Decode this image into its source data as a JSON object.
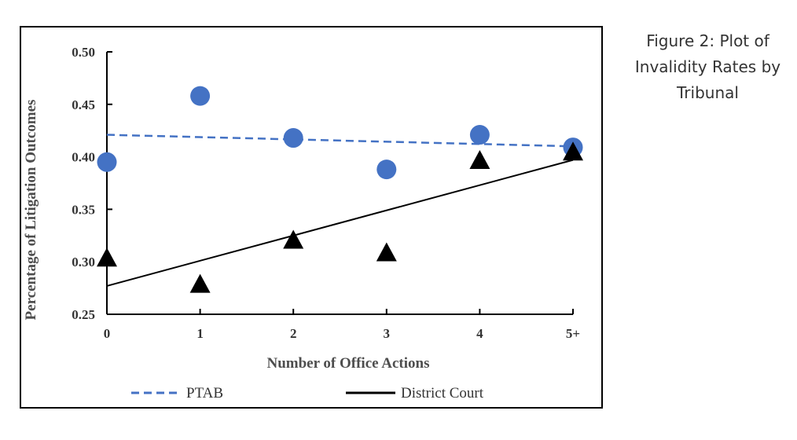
{
  "caption": "Figure 2: Plot of Invalidity Rates by Tribunal",
  "chart_data": {
    "type": "scatter",
    "title": "",
    "xlabel": "Number of Office Actions",
    "ylabel": "Percentage of Litigation Outcomes",
    "categories": [
      "0",
      "1",
      "2",
      "3",
      "4",
      "5+"
    ],
    "ylim": [
      0.25,
      0.5
    ],
    "yticks": [
      "0.25",
      "0.30",
      "0.35",
      "0.40",
      "0.45",
      "0.50"
    ],
    "grid": false,
    "legend_position": "bottom",
    "series": [
      {
        "name": "PTAB",
        "marker": "circle",
        "color": "#4472C4",
        "values": [
          0.395,
          0.458,
          0.418,
          0.388,
          0.421,
          0.409
        ],
        "trendline": {
          "style": "dashed",
          "start": 0.421,
          "end": 0.41
        }
      },
      {
        "name": "District Court",
        "marker": "triangle",
        "color": "#000000",
        "values": [
          0.303,
          0.278,
          0.32,
          0.308,
          0.396,
          0.404
        ],
        "trendline": {
          "style": "solid",
          "start": 0.277,
          "end": 0.397
        }
      }
    ]
  }
}
